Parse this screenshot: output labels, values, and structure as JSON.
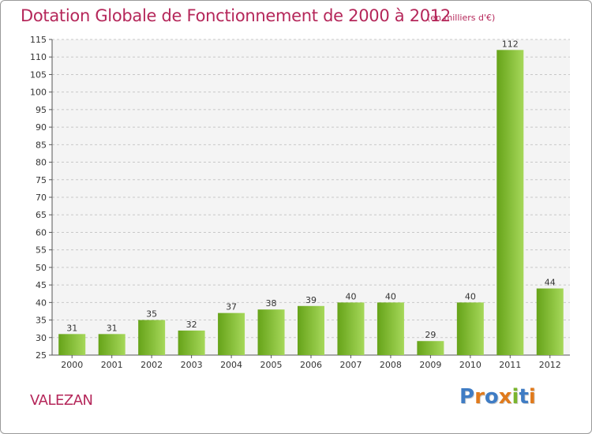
{
  "title": "Dotation Globale de Fonctionnement de 2000 à 2012",
  "subtitle": "(en milliers d'€)",
  "commune": "VALEZAN",
  "logo": {
    "letters": [
      {
        "ch": "P",
        "color": "#3f7cc4"
      },
      {
        "ch": "r",
        "color": "#e07a1c"
      },
      {
        "ch": "o",
        "color": "#3f7cc4"
      },
      {
        "ch": "x",
        "color": "#e07a1c"
      },
      {
        "ch": "i",
        "color": "#7ab52e"
      },
      {
        "ch": "t",
        "color": "#3f7cc4"
      },
      {
        "ch": "i",
        "color": "#e07a1c"
      }
    ]
  },
  "colors": {
    "accent": "#b5275a",
    "bar_light": "#a6d85a",
    "bar_dark": "#66a319",
    "grid": "#c8c8c8",
    "plot_bg": "#f4f4f4"
  },
  "chart_data": {
    "type": "bar",
    "categories": [
      "2000",
      "2001",
      "2002",
      "2003",
      "2004",
      "2005",
      "2006",
      "2007",
      "2008",
      "2009",
      "2010",
      "2011",
      "2012"
    ],
    "values": [
      31,
      31,
      35,
      32,
      37,
      38,
      39,
      40,
      40,
      29,
      40,
      112,
      44
    ],
    "ylim": [
      25,
      115
    ],
    "yticks": [
      25,
      30,
      35,
      40,
      45,
      50,
      55,
      60,
      65,
      70,
      75,
      80,
      85,
      90,
      95,
      100,
      105,
      110,
      115
    ],
    "grid": true,
    "data_labels": true
  }
}
